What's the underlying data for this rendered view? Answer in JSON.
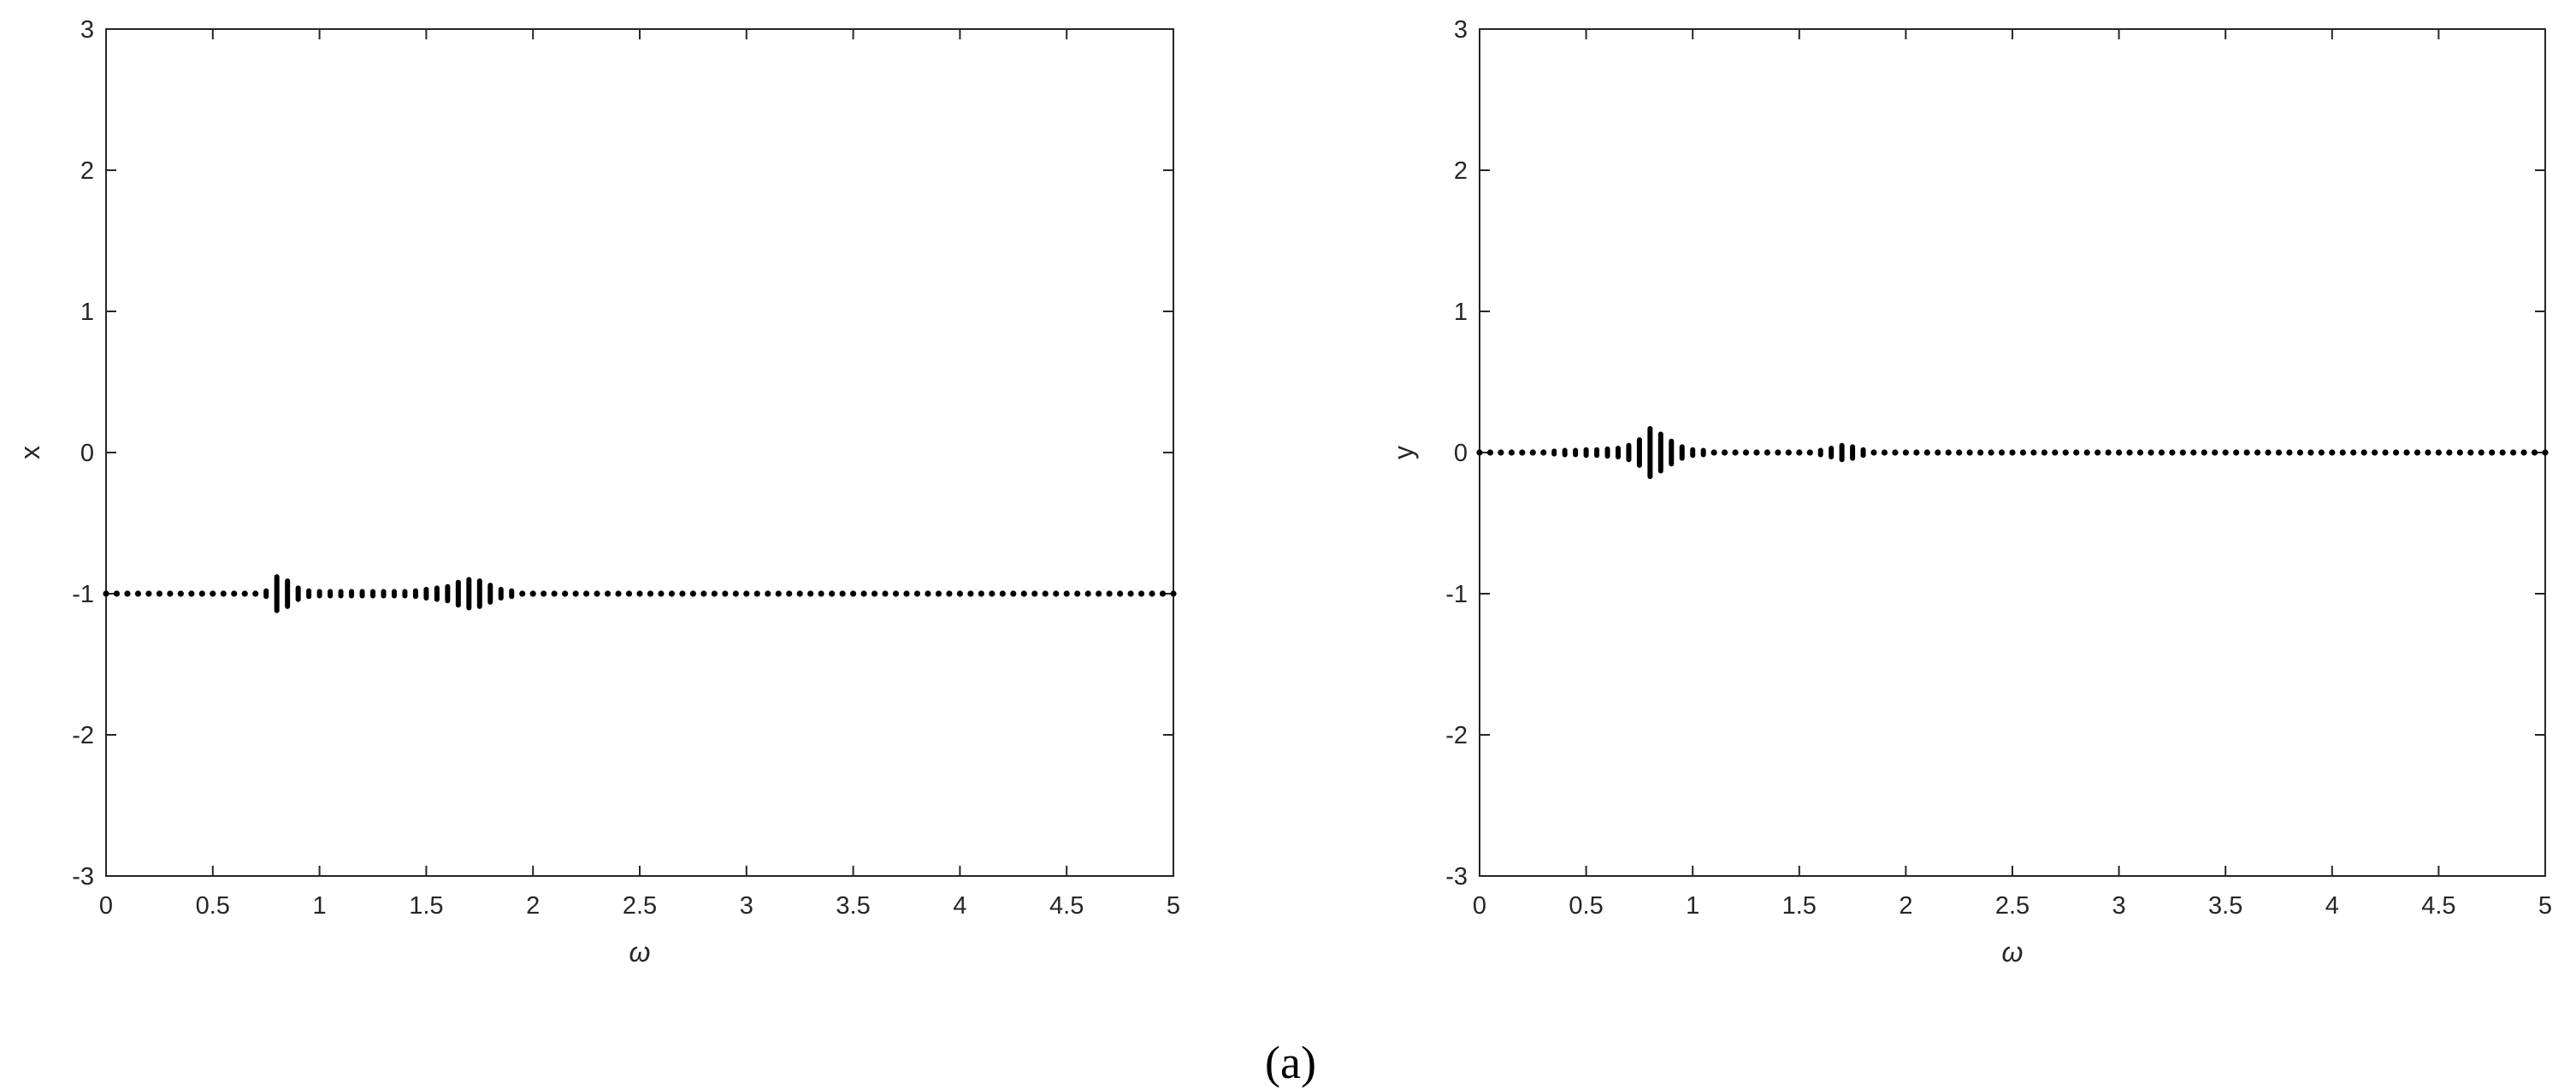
{
  "caption": "(a)",
  "chart_data": [
    {
      "type": "scatter",
      "xlabel": "ω",
      "ylabel": "x",
      "xlim": [
        0,
        5
      ],
      "ylim": [
        -3,
        3
      ],
      "xticks": [
        "0",
        "0.5",
        "1",
        "1.5",
        "2",
        "2.5",
        "3",
        "3.5",
        "4",
        "4.5",
        "5"
      ],
      "yticks": [
        "-3",
        "-2",
        "-1",
        "0",
        "1",
        "2",
        "3"
      ],
      "grid": false,
      "marker_color": "#000000",
      "baseline": -1,
      "x_step": 0.05,
      "x_range": [
        0,
        5
      ],
      "spreads": [
        {
          "x": 0.75,
          "half": 0.02
        },
        {
          "x": 0.8,
          "half": 0.12
        },
        {
          "x": 0.85,
          "half": 0.09
        },
        {
          "x": 0.9,
          "half": 0.04
        },
        {
          "x": 0.95,
          "half": 0.02
        },
        {
          "x": 1.0,
          "half": 0.015
        },
        {
          "x": 1.05,
          "half": 0.015
        },
        {
          "x": 1.1,
          "half": 0.015
        },
        {
          "x": 1.15,
          "half": 0.015
        },
        {
          "x": 1.2,
          "half": 0.015
        },
        {
          "x": 1.25,
          "half": 0.015
        },
        {
          "x": 1.3,
          "half": 0.015
        },
        {
          "x": 1.35,
          "half": 0.015
        },
        {
          "x": 1.4,
          "half": 0.015
        },
        {
          "x": 1.45,
          "half": 0.02
        },
        {
          "x": 1.5,
          "half": 0.03
        },
        {
          "x": 1.55,
          "half": 0.04
        },
        {
          "x": 1.6,
          "half": 0.05
        },
        {
          "x": 1.65,
          "half": 0.08
        },
        {
          "x": 1.7,
          "half": 0.1
        },
        {
          "x": 1.75,
          "half": 0.09
        },
        {
          "x": 1.8,
          "half": 0.06
        },
        {
          "x": 1.85,
          "half": 0.03
        },
        {
          "x": 1.9,
          "half": 0.02
        }
      ]
    },
    {
      "type": "scatter",
      "xlabel": "ω",
      "ylabel": "y",
      "xlim": [
        0,
        5
      ],
      "ylim": [
        -3,
        3
      ],
      "xticks": [
        "0",
        "0.5",
        "1",
        "1.5",
        "2",
        "2.5",
        "3",
        "3.5",
        "4",
        "4.5",
        "5"
      ],
      "yticks": [
        "-3",
        "-2",
        "-1",
        "0",
        "1",
        "2",
        "3"
      ],
      "grid": false,
      "marker_color": "#000000",
      "baseline": 0,
      "x_step": 0.05,
      "x_range": [
        0,
        5
      ],
      "spreads": [
        {
          "x": 0.35,
          "half": 0.01
        },
        {
          "x": 0.4,
          "half": 0.015
        },
        {
          "x": 0.45,
          "half": 0.015
        },
        {
          "x": 0.5,
          "half": 0.02
        },
        {
          "x": 0.55,
          "half": 0.02
        },
        {
          "x": 0.6,
          "half": 0.025
        },
        {
          "x": 0.65,
          "half": 0.03
        },
        {
          "x": 0.7,
          "half": 0.05
        },
        {
          "x": 0.75,
          "half": 0.09
        },
        {
          "x": 0.8,
          "half": 0.17
        },
        {
          "x": 0.85,
          "half": 0.13
        },
        {
          "x": 0.9,
          "half": 0.08
        },
        {
          "x": 0.95,
          "half": 0.04
        },
        {
          "x": 1.0,
          "half": 0.02
        },
        {
          "x": 1.05,
          "half": 0.015
        },
        {
          "x": 1.6,
          "half": 0.015
        },
        {
          "x": 1.65,
          "half": 0.03
        },
        {
          "x": 1.7,
          "half": 0.05
        },
        {
          "x": 1.75,
          "half": 0.04
        },
        {
          "x": 1.8,
          "half": 0.02
        }
      ]
    }
  ]
}
